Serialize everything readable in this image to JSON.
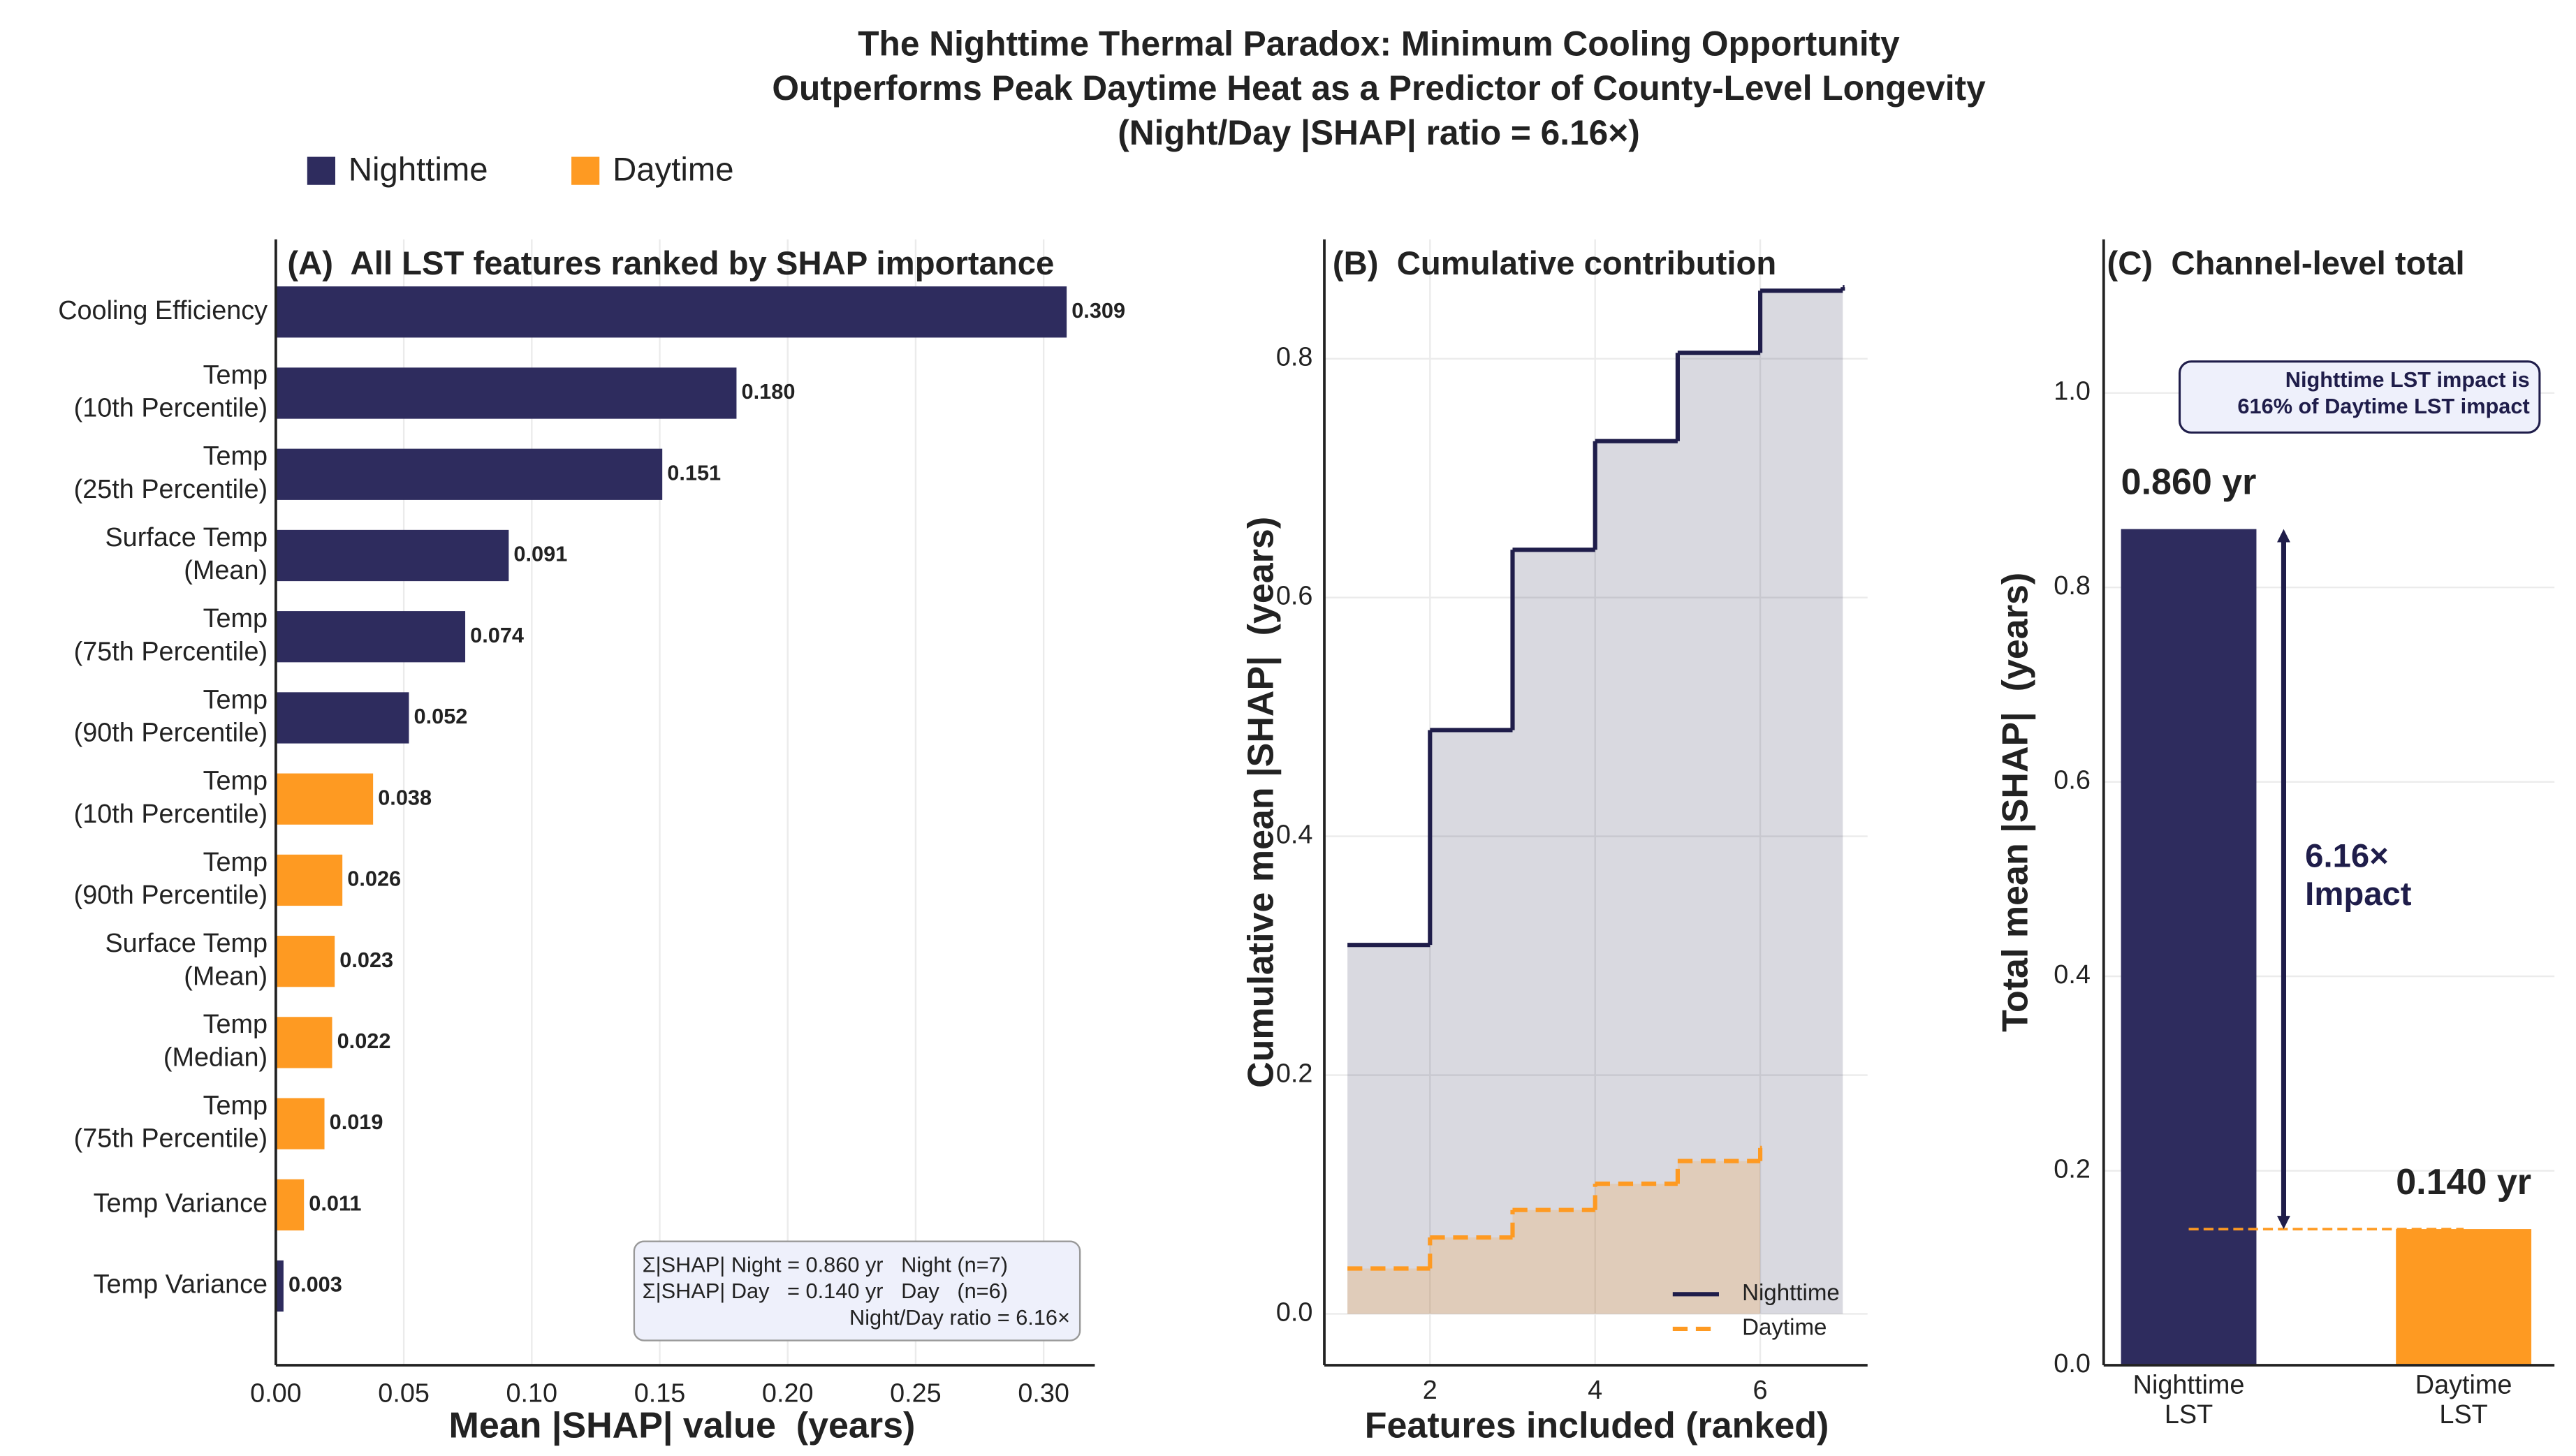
{
  "title": [
    "The Nighttime Thermal Paradox: Minimum Cooling Opportunity",
    "Outperforms Peak Daytime Heat as a Predictor of County-Level Longevity",
    "(Night/Day |SHAP| ratio = 6.16×)"
  ],
  "chart_data": [
    {
      "type": "barh",
      "title": "(A)  All LST features ranked by SHAP importance",
      "x_label": "Mean |SHAP| value  (years)",
      "categories": [
        [
          "Cooling Efficiency"
        ],
        [
          "Temp",
          "(10th Percentile)"
        ],
        [
          "Temp",
          "(25th Percentile)"
        ],
        [
          "Surface Temp",
          "(Mean)"
        ],
        [
          "Temp",
          "(75th Percentile)"
        ],
        [
          "Temp",
          "(90th Percentile)"
        ],
        [
          "Temp",
          "(10th Percentile)"
        ],
        [
          "Temp",
          "(90th Percentile)"
        ],
        [
          "Surface Temp",
          "(Mean)"
        ],
        [
          "Temp",
          "(Median)"
        ],
        [
          "Temp",
          "(75th Percentile)"
        ],
        [
          "Temp Variance"
        ],
        [
          "Temp Variance"
        ]
      ],
      "series": [
        {
          "name": "Nighttime",
          "color": "#2e2c5e",
          "values": [
            0.309,
            0.18,
            0.151,
            0.091,
            0.074,
            0.052,
            null,
            null,
            null,
            null,
            null,
            null,
            0.003
          ],
          "value_labels": [
            "0.309",
            "0.180",
            "0.151",
            "0.091",
            "0.074",
            "0.052",
            null,
            null,
            null,
            null,
            null,
            null,
            "0.003"
          ]
        },
        {
          "name": "Daytime",
          "color": "#fe9a22",
          "values": [
            null,
            null,
            null,
            null,
            null,
            null,
            0.038,
            0.026,
            0.023,
            0.022,
            0.019,
            0.011,
            null
          ],
          "value_labels": [
            null,
            null,
            null,
            null,
            null,
            null,
            "0.038",
            "0.026",
            "0.023",
            "0.022",
            "0.019",
            "0.011",
            null
          ]
        }
      ],
      "xlim": [
        0,
        0.32
      ],
      "xticks": [
        {
          "value": 0,
          "label": "0.00"
        },
        0.05,
        {
          "value": 0.1,
          "label": "0.10"
        },
        0.15,
        {
          "value": 0.2,
          "label": "0.20"
        },
        0.25,
        {
          "value": 0.3,
          "label": "0.30"
        }
      ],
      "grid": true,
      "annotation": [
        "Σ|SHAP| Night = 0.860 yr   Night (n=7)",
        "Σ|SHAP| Day   = 0.140 yr   Day   (n=6)",
        "Night/Day ratio = 6.16×"
      ]
    },
    {
      "type": "step",
      "title": "(B)  Cumulative contribution",
      "x_label": "Features included (ranked)",
      "y_label": "Cumulative mean |SHAP|  (years)",
      "x": [
        1,
        2,
        3,
        4,
        5,
        6,
        7
      ],
      "series": [
        {
          "name": "Nighttime",
          "color": "#1f1d4a",
          "style": "solid",
          "values": [
            0.309,
            0.489,
            0.64,
            0.731,
            0.805,
            0.857,
            0.86
          ]
        },
        {
          "name": "Daytime",
          "color": "#fe9a22",
          "style": "dashed",
          "values": [
            0.038,
            0.064,
            0.087,
            0.109,
            0.128,
            0.139,
            null
          ]
        }
      ],
      "xlim": [
        0.72,
        7.3
      ],
      "xticks": [
        2,
        4,
        6
      ],
      "ylim": [
        -0.043,
        0.9
      ],
      "yticks": [
        {
          "value": 0,
          "label": "0.0"
        },
        0.2,
        0.4,
        0.6,
        0.8
      ],
      "grid": true,
      "legend": "lower right"
    },
    {
      "type": "bar",
      "title": "(C)  Channel-level total",
      "y_label": "Total mean |SHAP|  (years)",
      "categories": [
        [
          "Nighttime",
          "LST"
        ],
        [
          "Daytime",
          "LST"
        ]
      ],
      "values": [
        0.86,
        0.14
      ],
      "value_labels": [
        "0.860 yr",
        "0.140 yr"
      ],
      "colors": [
        "#2e2c5e",
        "#fe9a22"
      ],
      "ylim": [
        0,
        1.158
      ],
      "yticks": [
        {
          "value": 0,
          "label": "0.0"
        },
        0.2,
        0.4,
        0.6,
        0.8,
        {
          "value": 1,
          "label": "1.0"
        }
      ],
      "grid": true,
      "annotation": [
        "6.16×",
        "Impact"
      ],
      "note": [
        "Nighttime LST impact is",
        "616% of Daytime LST impact"
      ]
    }
  ]
}
